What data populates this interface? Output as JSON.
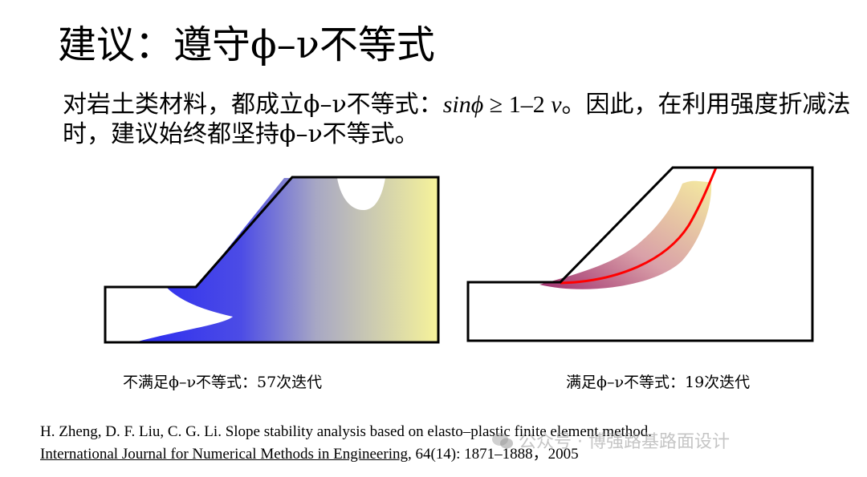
{
  "slide": {
    "title": "建议：遵守ϕ–ν不等式",
    "body_prefix": "对岩土类材料，都成立ϕ–ν不等式：",
    "formula_sin": "sin",
    "formula_phi": "ϕ",
    "formula_rest": " ≥ 1–2",
    "formula_nu": "ν",
    "body_suffix": "。因此，在利用强度折减法时，建议始终都坚持ϕ–ν不等式。"
  },
  "figures": {
    "left_caption": "不满足ϕ–ν不等式：57次迭代",
    "right_caption": "满足ϕ–ν不等式：19次迭代",
    "colors": {
      "left_gradient_start": "#2b2bf0",
      "left_gradient_end": "#f6f39a",
      "right_band_start": "#a0306e",
      "right_band_end": "#f4eaa0",
      "slip_curve": "#ff0000"
    }
  },
  "reference": {
    "line1": "H. Zheng, D. F. Liu, C. G. Li. Slope stability analysis based on elasto–plastic finite element method.",
    "journal": "International Journal for Numerical Methods in Engineering",
    "details": ", 64(14): 1871–1888，2005"
  },
  "watermark": {
    "text": "公众号 · 博强路基路面设计",
    "icon": "wechat-icon"
  }
}
